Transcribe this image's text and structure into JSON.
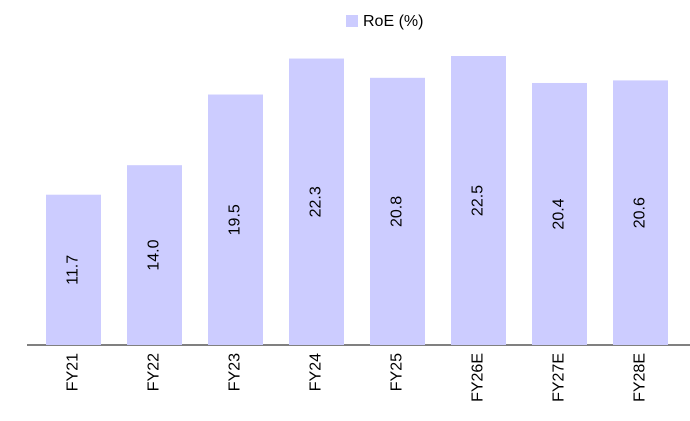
{
  "chart_data": {
    "type": "bar",
    "categories": [
      "FY21",
      "FY22",
      "FY23",
      "FY24",
      "FY25",
      "FY26E",
      "FY27E",
      "FY28E"
    ],
    "series": [
      {
        "name": "RoE (%)",
        "color": "#ccccff",
        "values": [
          11.7,
          14.0,
          19.5,
          22.3,
          20.8,
          22.5,
          20.4,
          20.6
        ],
        "value_labels": [
          "11.7",
          "14.0",
          "19.5",
          "22.3",
          "20.8",
          "22.5",
          "20.4",
          "20.6"
        ]
      }
    ],
    "legend": "top"
  }
}
